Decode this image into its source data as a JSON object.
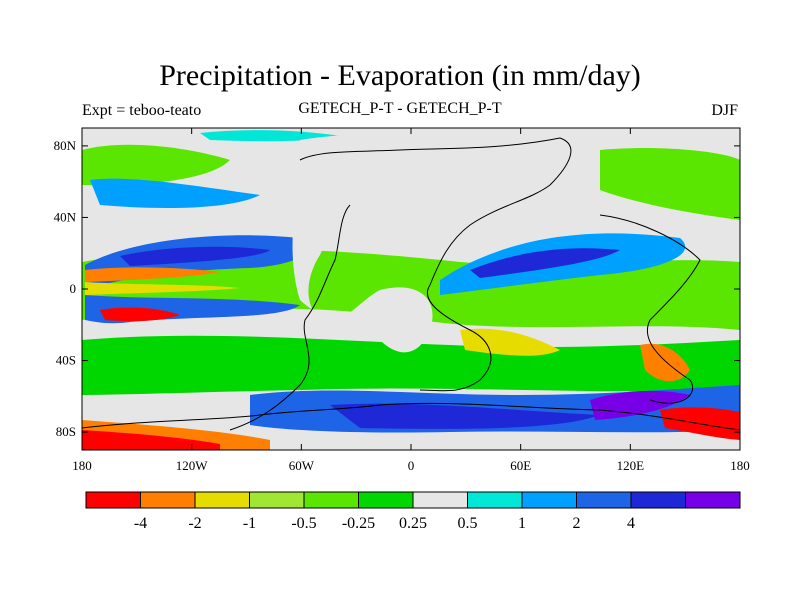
{
  "title": "Precipitation - Evaporation (in mm/day)",
  "left_subtitle": "Expt = teboo-teato",
  "center_subtitle": "GETECH_P-T - GETECH_P-T",
  "right_subtitle": "DJF",
  "map": {
    "projection": "equirectangular",
    "lon_range": [
      -180,
      180
    ],
    "lat_range": [
      -90,
      90
    ],
    "x_ticks": [
      {
        "value": -180,
        "label": "180"
      },
      {
        "value": -120,
        "label": "120W"
      },
      {
        "value": -60,
        "label": "60W"
      },
      {
        "value": 0,
        "label": "0"
      },
      {
        "value": 60,
        "label": "60E"
      },
      {
        "value": 120,
        "label": "120E"
      },
      {
        "value": 180,
        "label": "180"
      }
    ],
    "y_ticks": [
      {
        "value": 80,
        "label": "80N"
      },
      {
        "value": 40,
        "label": "40N"
      },
      {
        "value": 0,
        "label": "0"
      },
      {
        "value": -40,
        "label": "40S"
      },
      {
        "value": -80,
        "label": "80S"
      }
    ],
    "background_color": "#e6e6e6"
  },
  "colorbar": {
    "colors": [
      "#ff0000",
      "#ff8000",
      "#e6dc00",
      "#a0e632",
      "#5ae600",
      "#00d700",
      "#e6e6e6",
      "#00e6d7",
      "#00a0ff",
      "#1e64e6",
      "#1e28d7",
      "#7800e6"
    ],
    "labels": [
      "-4",
      "-2",
      "-1",
      "-0.5",
      "-0.25",
      "0.25",
      "0.5",
      "1",
      "2",
      "4"
    ]
  }
}
